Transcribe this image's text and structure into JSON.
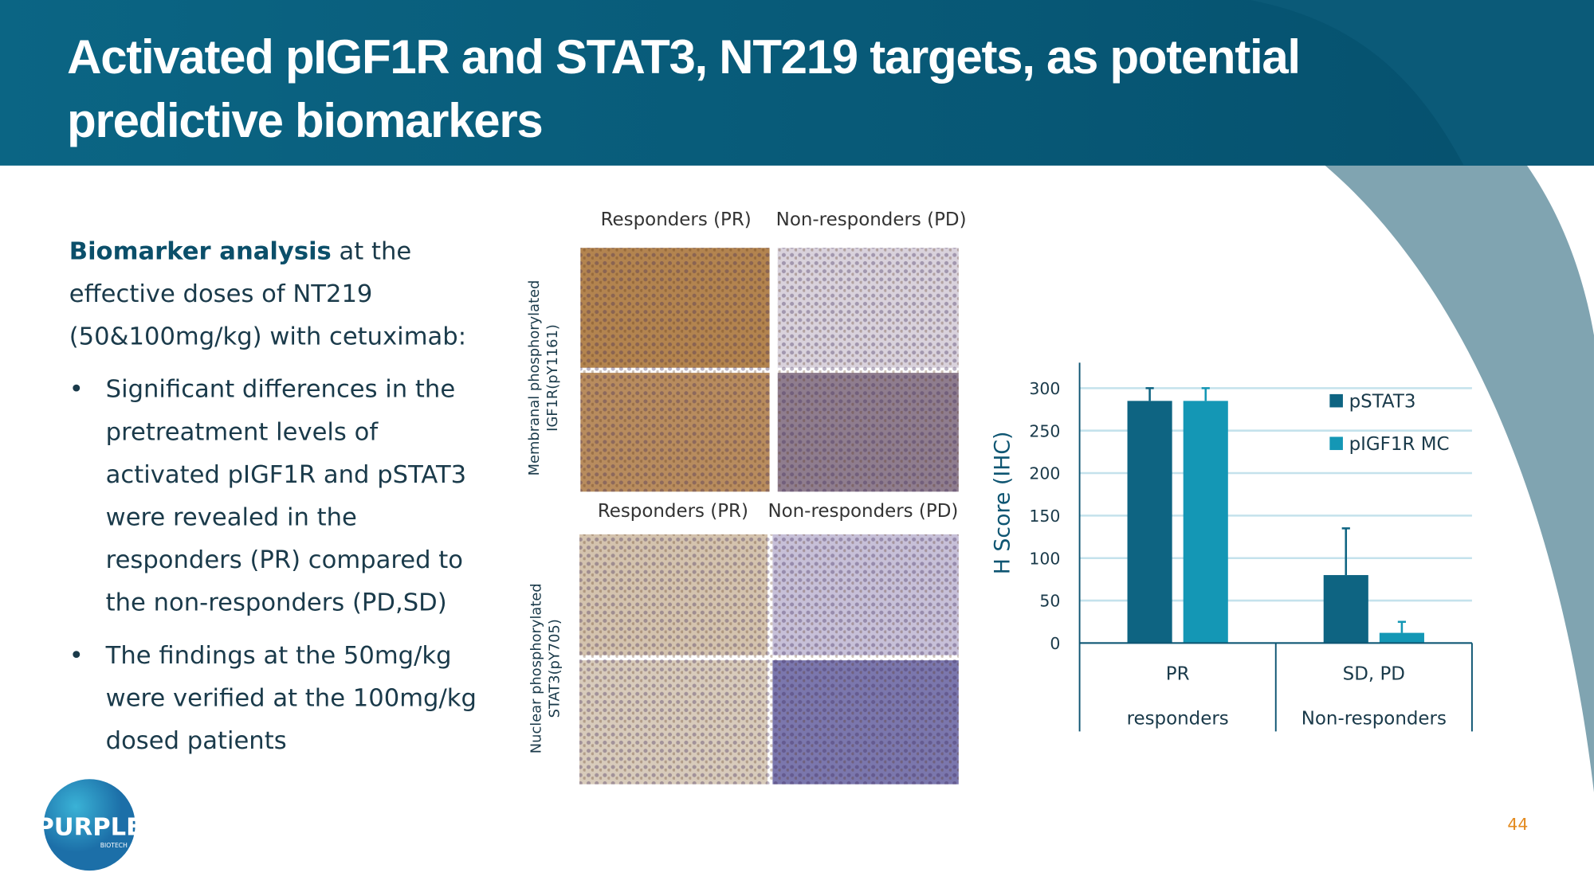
{
  "header": {
    "title": "Activated pIGF1R and STAT3, NT219 targets, as potential predictive biomarkers"
  },
  "body": {
    "intro_bold": "Biomarker analysis",
    "intro": "at the effective doses of NT219 (50&100mg/kg) with cetuximab:",
    "bullets": [
      "Significant differences in the pretreatment levels of activated pIGF1R and pSTAT3 were revealed in the responders (PR) compared to the non-responders (PD,SD)",
      "The findings at the 50mg/kg were verified at the 100mg/kg dosed patients"
    ]
  },
  "figure": {
    "column_labels": [
      "Responders (PR)",
      "Non-responders (PD)"
    ],
    "row_labels": [
      [
        "Membranal phosphorylated",
        "IGF1R(pY1161)"
      ],
      [
        "Nuclear phosphorylated",
        "STAT3(pY705)"
      ]
    ]
  },
  "chart_data": {
    "type": "bar",
    "categories": [
      "PR",
      "SD, PD"
    ],
    "category_groups": [
      "responders",
      "Non-responders"
    ],
    "series": [
      {
        "name": "pSTAT3",
        "color": "#0e6482",
        "values": [
          285,
          80
        ],
        "errors": [
          15,
          55
        ]
      },
      {
        "name": "pIGF1R MC",
        "color": "#1497b5",
        "values": [
          285,
          12
        ],
        "errors": [
          15,
          13
        ]
      }
    ],
    "ylabel": "H Score (IHC)",
    "ylim": [
      0,
      330
    ],
    "yticks": [
      0,
      50,
      100,
      150,
      200,
      250,
      300
    ],
    "grid": true,
    "legend": "right"
  },
  "footer": {
    "logo": "PURPLE",
    "logo_sub": "BIOTECH",
    "page_number": "44"
  }
}
